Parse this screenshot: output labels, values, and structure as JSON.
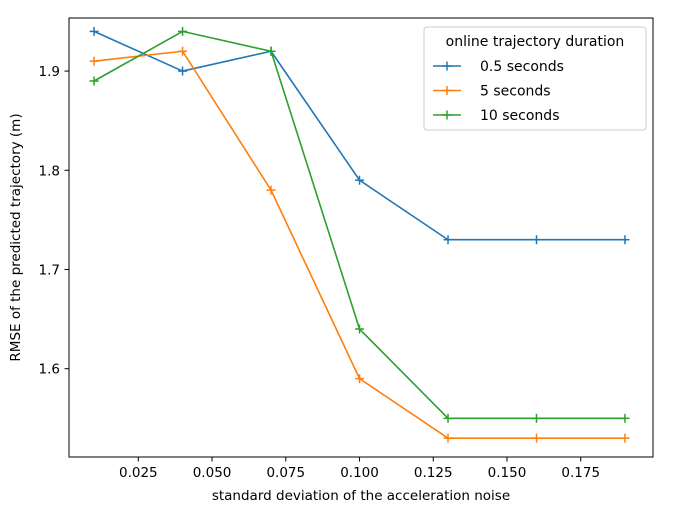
{
  "chart_data": {
    "type": "line",
    "xlabel": "standard deviation of the acceleration noise",
    "ylabel": "RMSE of the predicted trajectory (m)",
    "xlim": [
      0.0015,
      0.1995
    ],
    "ylim": [
      1.511,
      1.9535
    ],
    "xticks": [
      0.025,
      0.05,
      0.075,
      0.1,
      0.125,
      0.15,
      0.175
    ],
    "xtick_labels": [
      "0.025",
      "0.050",
      "0.075",
      "0.100",
      "0.125",
      "0.150",
      "0.175"
    ],
    "yticks": [
      1.6,
      1.7,
      1.8,
      1.9
    ],
    "ytick_labels": [
      "1.6",
      "1.7",
      "1.8",
      "1.9"
    ],
    "x": [
      0.01,
      0.04,
      0.07,
      0.1,
      0.13,
      0.16,
      0.19
    ],
    "series": [
      {
        "name": "0.5 seconds",
        "color": "#1f77b4",
        "values": [
          1.94,
          1.9,
          1.92,
          1.79,
          1.73,
          1.73,
          1.73
        ]
      },
      {
        "name": "5 seconds",
        "color": "#ff7f0e",
        "values": [
          1.91,
          1.92,
          1.78,
          1.59,
          1.53,
          1.53,
          1.53
        ]
      },
      {
        "name": "10 seconds",
        "color": "#2ca02c",
        "values": [
          1.89,
          1.94,
          1.92,
          1.64,
          1.55,
          1.55,
          1.55
        ]
      }
    ],
    "legend": {
      "title": "online trajectory duration",
      "position": "top-right"
    },
    "marker": "plus",
    "grid": false
  }
}
